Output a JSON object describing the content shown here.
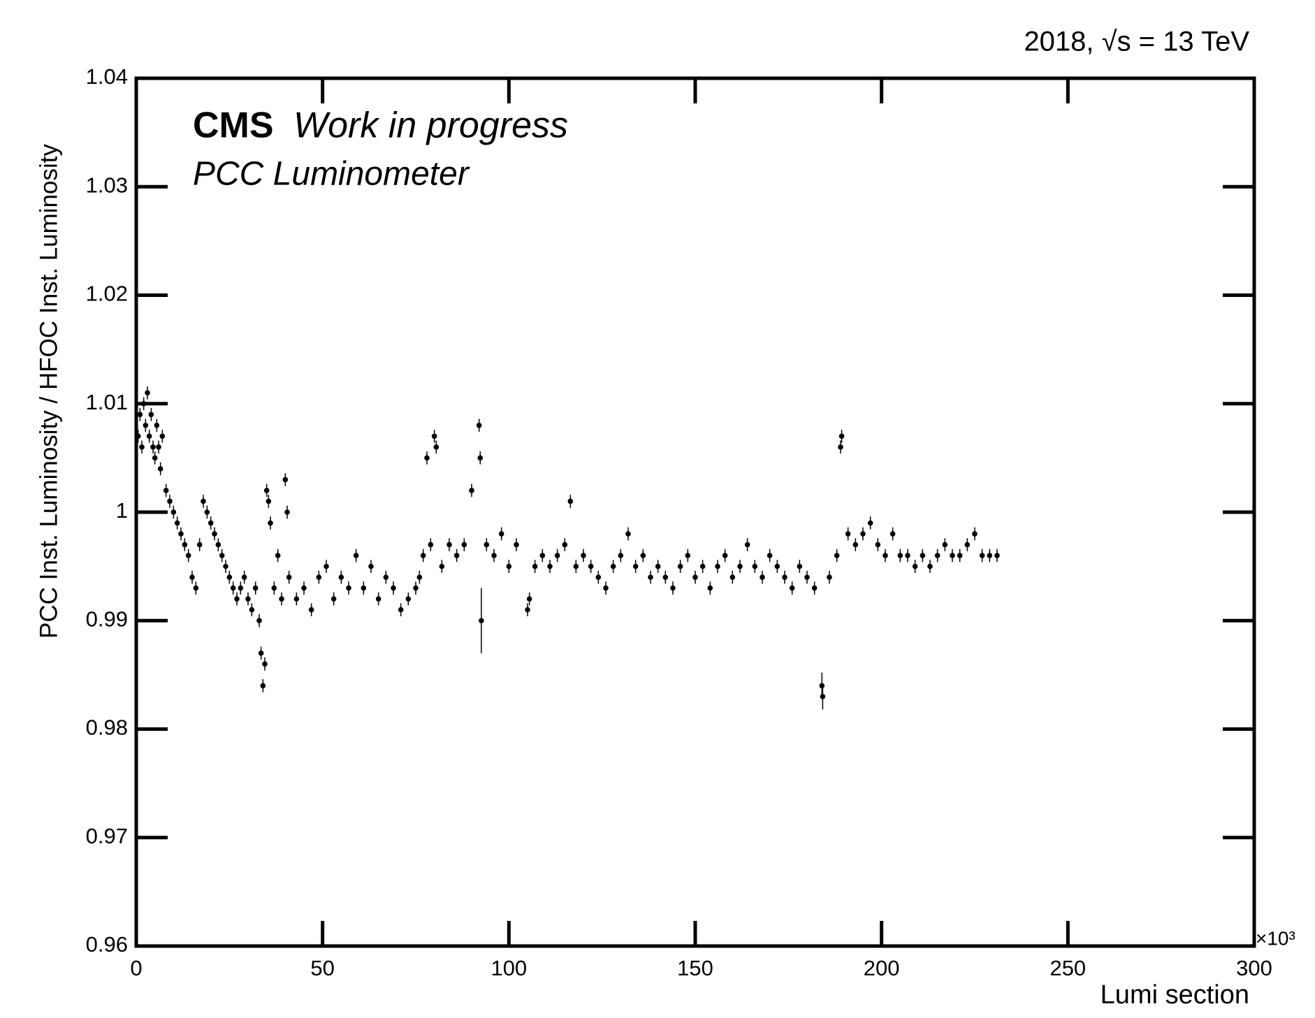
{
  "chart_data": {
    "type": "scatter",
    "energy_label": "2018, √s = 13 TeV",
    "experiment": "CMS",
    "status": "Work in progress",
    "detector": "PCC Luminometer",
    "x_label": "Lumi section",
    "x_multiplier": "×10³",
    "y_label": "PCC Inst. Luminosity  / HFOC Inst. Luminosity",
    "xlim": [
      0,
      300
    ],
    "xticks": [
      0,
      50,
      100,
      150,
      200,
      250,
      300
    ],
    "ylim": [
      0.96,
      1.04
    ],
    "yticks": [
      0.96,
      0.97,
      0.98,
      0.99,
      1,
      1.01,
      1.02,
      1.03,
      1.04
    ],
    "series": [
      {
        "color": "#000000",
        "x": [
          0.5,
          1,
          1.5,
          2,
          2.5,
          3,
          3.5,
          4,
          4.5,
          5,
          5.5,
          6,
          6.5,
          7,
          8,
          9,
          10,
          11,
          12,
          13,
          14,
          15,
          16,
          17,
          18,
          19,
          20,
          21,
          22,
          23,
          24,
          25,
          26,
          27,
          28,
          29,
          30,
          31,
          32,
          33,
          33.5,
          34,
          34.5,
          35,
          35.5,
          36,
          37,
          38,
          39,
          40,
          40.5,
          41,
          43,
          45,
          47,
          49,
          51,
          53,
          55,
          57,
          59,
          61,
          63,
          65,
          67,
          69,
          71,
          73,
          75,
          76,
          77,
          78,
          79,
          80,
          80.5,
          82,
          84,
          86,
          88,
          90,
          92,
          92.3,
          92.6,
          94,
          96,
          98,
          100,
          102,
          105,
          105.5,
          107,
          109,
          111,
          113,
          115,
          116.5,
          118,
          120,
          122,
          124,
          126,
          128,
          130,
          132,
          134,
          136,
          138,
          140,
          142,
          144,
          146,
          148,
          150,
          152,
          154,
          156,
          158,
          160,
          162,
          164,
          166,
          168,
          170,
          172,
          174,
          176,
          178,
          180,
          182,
          184,
          184.2,
          186,
          188,
          189,
          189.3,
          191,
          193,
          195,
          197,
          199,
          201,
          203,
          205,
          207,
          209,
          211,
          213,
          215,
          217,
          219,
          221,
          223,
          225,
          227,
          229,
          231
        ],
        "values": [
          1.007,
          1.009,
          1.006,
          1.01,
          1.008,
          1.011,
          1.007,
          1.009,
          1.006,
          1.005,
          1.008,
          1.006,
          1.004,
          1.007,
          1.002,
          1.001,
          1.0,
          0.999,
          0.998,
          0.997,
          0.996,
          0.994,
          0.993,
          0.997,
          1.001,
          1.0,
          0.999,
          0.998,
          0.997,
          0.996,
          0.995,
          0.994,
          0.993,
          0.992,
          0.993,
          0.994,
          0.992,
          0.991,
          0.993,
          0.99,
          0.987,
          0.984,
          0.986,
          1.002,
          1.001,
          0.999,
          0.993,
          0.996,
          0.992,
          1.003,
          1.0,
          0.994,
          0.992,
          0.993,
          0.991,
          0.994,
          0.995,
          0.992,
          0.994,
          0.993,
          0.996,
          0.993,
          0.995,
          0.992,
          0.994,
          0.993,
          0.991,
          0.992,
          0.993,
          0.994,
          0.996,
          1.005,
          0.997,
          1.007,
          1.006,
          0.995,
          0.997,
          0.996,
          0.997,
          1.002,
          1.008,
          1.005,
          0.99,
          0.997,
          0.996,
          0.998,
          0.995,
          0.997,
          0.991,
          0.992,
          0.995,
          0.996,
          0.995,
          0.996,
          0.997,
          1.001,
          0.995,
          0.996,
          0.995,
          0.994,
          0.993,
          0.995,
          0.996,
          0.998,
          0.995,
          0.996,
          0.994,
          0.995,
          0.994,
          0.993,
          0.995,
          0.996,
          0.994,
          0.995,
          0.993,
          0.995,
          0.996,
          0.994,
          0.995,
          0.997,
          0.995,
          0.994,
          0.996,
          0.995,
          0.994,
          0.993,
          0.995,
          0.994,
          0.993,
          0.984,
          0.983,
          0.994,
          0.996,
          1.006,
          1.007,
          0.998,
          0.997,
          0.998,
          0.999,
          0.997,
          0.996,
          0.998,
          0.996,
          0.996,
          0.995,
          0.996,
          0.995,
          0.996,
          0.997,
          0.996,
          0.996,
          0.997,
          0.998,
          0.996,
          0.996,
          0.996
        ],
        "errors": [
          0.0006,
          0.0006,
          0.0006,
          0.0006,
          0.0006,
          0.0006,
          0.0006,
          0.0006,
          0.0006,
          0.0006,
          0.0006,
          0.0006,
          0.0006,
          0.0006,
          0.0006,
          0.0006,
          0.0006,
          0.0006,
          0.0006,
          0.0006,
          0.0006,
          0.0006,
          0.0006,
          0.0006,
          0.0006,
          0.0006,
          0.0006,
          0.0006,
          0.0006,
          0.0006,
          0.0006,
          0.0006,
          0.0006,
          0.0006,
          0.0006,
          0.0006,
          0.0006,
          0.0006,
          0.0006,
          0.0006,
          0.0006,
          0.0006,
          0.0006,
          0.0006,
          0.0006,
          0.0006,
          0.0006,
          0.0006,
          0.0006,
          0.0006,
          0.0006,
          0.0006,
          0.0006,
          0.0006,
          0.0006,
          0.0006,
          0.0006,
          0.0006,
          0.0006,
          0.0006,
          0.0006,
          0.0006,
          0.0006,
          0.0006,
          0.0006,
          0.0006,
          0.0006,
          0.0006,
          0.0006,
          0.0006,
          0.0006,
          0.0006,
          0.0006,
          0.0006,
          0.0006,
          0.0006,
          0.0006,
          0.0006,
          0.0006,
          0.0006,
          0.0006,
          0.0006,
          0.003,
          0.0006,
          0.0006,
          0.0006,
          0.0006,
          0.0006,
          0.0006,
          0.0006,
          0.0006,
          0.0006,
          0.0006,
          0.0006,
          0.0006,
          0.0006,
          0.0006,
          0.0006,
          0.0006,
          0.0006,
          0.0006,
          0.0006,
          0.0006,
          0.0006,
          0.0006,
          0.0006,
          0.0006,
          0.0006,
          0.0006,
          0.0006,
          0.0006,
          0.0006,
          0.0006,
          0.0006,
          0.0006,
          0.0006,
          0.0006,
          0.0006,
          0.0006,
          0.0006,
          0.0006,
          0.0006,
          0.0006,
          0.0006,
          0.0006,
          0.0006,
          0.0006,
          0.0006,
          0.0006,
          0.0012,
          0.0012,
          0.0006,
          0.0006,
          0.0006,
          0.0006,
          0.0006,
          0.0006,
          0.0006,
          0.0006,
          0.0006,
          0.0006,
          0.0006,
          0.0006,
          0.0006,
          0.0006,
          0.0006,
          0.0006,
          0.0006,
          0.0006,
          0.0006,
          0.0006,
          0.0006,
          0.0006,
          0.0006,
          0.0006,
          0.0006
        ]
      }
    ]
  }
}
